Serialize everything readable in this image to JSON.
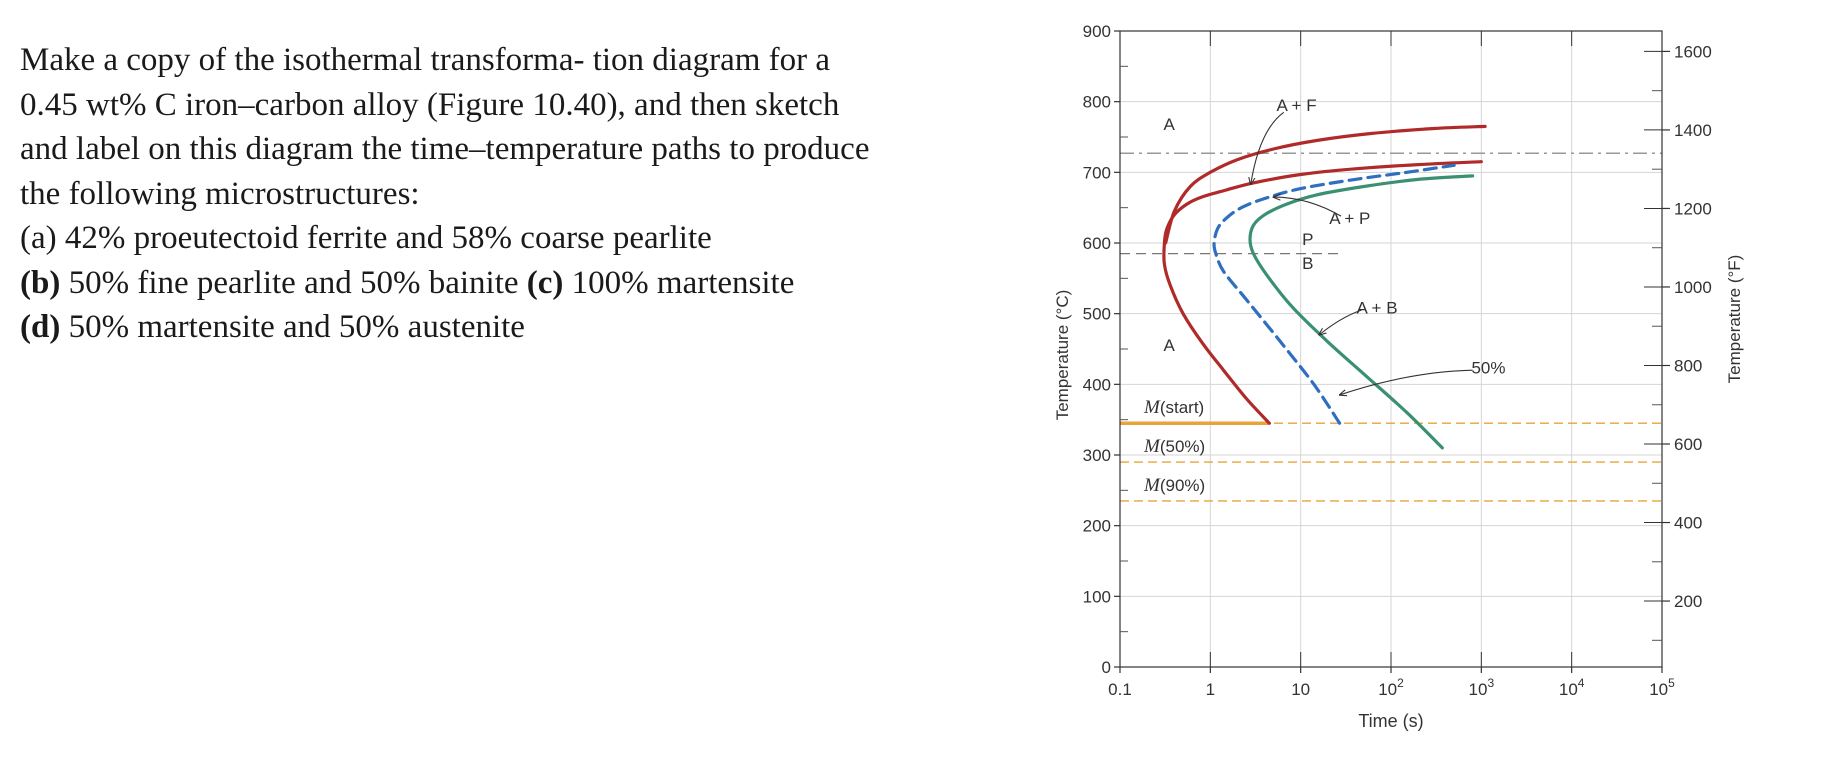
{
  "problem": {
    "line1": "Make a copy of the isothermal transforma- tion diagram for a",
    "line2": "0.45 wt% C iron–carbon alloy (Figure 10.40), and then sketch",
    "line3": "and label on this diagram the time–temperature paths to produce",
    "line4": "the following microstructures:",
    "a_label": "(a)",
    "a_text": "42% proeutectoid ferrite and 58% coarse pearlite",
    "b_label": "(b)",
    "b_text": "50% fine pearlite and 50% bainite",
    "c_label": "(c)",
    "c_text": "100% martensite",
    "d_label": "(d)",
    "d_text": "50% martensite and 50% austenite"
  },
  "chart_data": {
    "type": "line",
    "xlabel": "Time (s)",
    "ylabel": "Temperature (°C)",
    "ylabel_right": "Temperature (°F)",
    "xscale": "log",
    "xlim": [
      0.1,
      100000
    ],
    "ylim": [
      0,
      900
    ],
    "x_ticks": [
      {
        "value": 0.1,
        "label": "0.1"
      },
      {
        "value": 1,
        "label": "1"
      },
      {
        "value": 10,
        "label": "10"
      },
      {
        "value": 100,
        "base": "10",
        "exp": "2"
      },
      {
        "value": 1000,
        "base": "10",
        "exp": "3"
      },
      {
        "value": 10000,
        "base": "10",
        "exp": "4"
      },
      {
        "value": 100000,
        "base": "10",
        "exp": "5"
      }
    ],
    "y_ticks": [
      0,
      100,
      200,
      300,
      400,
      500,
      600,
      700,
      800,
      900
    ],
    "y_ticks_f": [
      200,
      400,
      600,
      800,
      1000,
      1200,
      1400,
      1600
    ],
    "grid": true,
    "colors": {
      "start_curve": "#b02a2a",
      "finish_curve": "#3a9070",
      "fifty_curve": "#2e6fbf",
      "martensite": "#e8a33a",
      "eutectoid_line": "#999999"
    },
    "reference_lines": [
      {
        "name": "eutectoid",
        "y": 727,
        "style": "dashdot"
      },
      {
        "name": "P-B boundary",
        "y": 585,
        "x_range": [
          0.1,
          30
        ],
        "style": "dashed"
      }
    ],
    "martensite_lines": [
      {
        "label_M": "M",
        "label_rest": "(start)",
        "y": 345
      },
      {
        "label_M": "M",
        "label_rest": "(50%)",
        "y": 290
      },
      {
        "label_M": "M",
        "label_rest": "(90%)",
        "y": 235
      }
    ],
    "series": [
      {
        "key": "ferrite_start",
        "x": [
          0.32,
          0.4,
          0.6,
          1,
          2,
          5,
          15,
          60,
          300,
          1100
        ],
        "y": [
          600,
          645,
          680,
          700,
          718,
          733,
          745,
          755,
          762,
          765
        ]
      },
      {
        "key": "pearlite_bainite_start",
        "x": [
          4.5,
          2.5,
          1.4,
          0.8,
          0.5,
          0.36,
          0.31,
          0.31,
          0.33,
          0.4,
          0.55,
          0.8,
          1.5,
          3,
          10,
          40,
          200,
          1000
        ],
        "y": [
          345,
          380,
          420,
          460,
          500,
          540,
          570,
          600,
          620,
          640,
          655,
          665,
          675,
          685,
          697,
          705,
          711,
          715
        ]
      },
      {
        "key": "fifty_percent",
        "x": [
          27,
          14,
          6,
          2.5,
          1.4,
          1.15,
          1.1,
          1.2,
          1.5,
          2.2,
          4,
          10,
          40,
          150,
          500
        ],
        "y": [
          345,
          400,
          460,
          520,
          560,
          585,
          600,
          620,
          635,
          650,
          663,
          677,
          690,
          700,
          710
        ]
      },
      {
        "key": "finish",
        "x": [
          370,
          150,
          55,
          20,
          8,
          4.2,
          3,
          2.75,
          3,
          4,
          7,
          15,
          50,
          200,
          800
        ],
        "y": [
          310,
          360,
          410,
          460,
          510,
          555,
          585,
          605,
          625,
          640,
          655,
          668,
          680,
          690,
          695
        ]
      }
    ],
    "annotations": [
      {
        "text": "A",
        "x": 0.35,
        "y": 760
      },
      {
        "text": "A + F",
        "x": 9,
        "y": 787
      },
      {
        "text": "A + P",
        "x": 35,
        "y": 627
      },
      {
        "text": "P",
        "x": 12,
        "y": 597
      },
      {
        "text": "B",
        "x": 12,
        "y": 563
      },
      {
        "text": "A + B",
        "x": 70,
        "y": 500
      },
      {
        "text": "A",
        "x": 0.35,
        "y": 447
      },
      {
        "text": "50%",
        "x": 1200,
        "y": 415
      }
    ]
  }
}
